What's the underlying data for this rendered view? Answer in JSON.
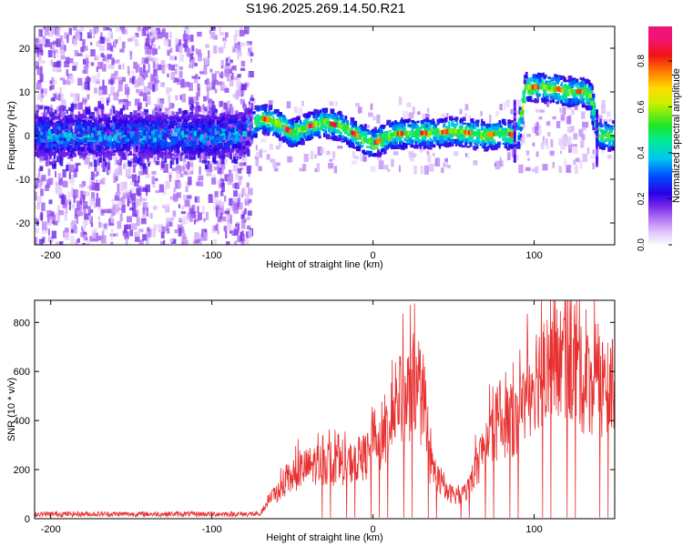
{
  "title": "S196.2025.269.14.50.R21",
  "chart_data": [
    {
      "type": "heatmap",
      "xlabel": "Height of straight line (km)",
      "ylabel": "Frequency (Hz)",
      "xlim": [
        -210,
        150
      ],
      "ylim": [
        -25,
        25
      ],
      "xticks": [
        -200,
        -100,
        0,
        100
      ],
      "yticks": [
        -20,
        -10,
        0,
        10,
        20
      ],
      "colorbar": {
        "label": "Normalized spectral amplitude",
        "range": [
          0,
          0.95
        ],
        "ticks": [
          0.0,
          0.2,
          0.4,
          0.6,
          0.8
        ]
      },
      "ridge": {
        "description": "peak frequency vs height",
        "x": [
          -210,
          -150,
          -100,
          -80,
          -70,
          -60,
          -50,
          -40,
          -30,
          -20,
          -10,
          -5,
          0,
          5,
          10,
          20,
          30,
          40,
          50,
          60,
          70,
          80,
          88,
          90,
          95,
          100,
          110,
          120,
          130,
          135,
          140,
          150
        ],
        "y": [
          0,
          0,
          0,
          0.5,
          4,
          3,
          0.5,
          2,
          3,
          2,
          0,
          -1,
          -2,
          -1,
          0,
          0.5,
          0.5,
          0.5,
          1,
          0.5,
          0,
          0.5,
          0,
          0,
          11,
          11,
          11,
          10,
          10,
          9,
          0,
          0
        ]
      }
    },
    {
      "type": "line",
      "xlabel": "Height of straight line (km)",
      "ylabel": "SNR (10 * v/v)",
      "xlim": [
        -210,
        150
      ],
      "ylim": [
        0,
        890
      ],
      "xticks": [
        -200,
        -100,
        0,
        100
      ],
      "yticks": [
        0,
        200,
        400,
        600,
        800
      ],
      "series_color": "#e83030",
      "envelope": {
        "x": [
          -210,
          -70,
          -65,
          -55,
          -45,
          -35,
          -25,
          -15,
          -5,
          5,
          15,
          25,
          30,
          35,
          45,
          55,
          60,
          70,
          80,
          90,
          100,
          110,
          120,
          130,
          140,
          150
        ],
        "y": [
          20,
          20,
          80,
          150,
          220,
          250,
          240,
          250,
          280,
          320,
          520,
          580,
          520,
          260,
          120,
          100,
          150,
          350,
          450,
          430,
          650,
          680,
          720,
          620,
          600,
          560
        ]
      }
    }
  ]
}
